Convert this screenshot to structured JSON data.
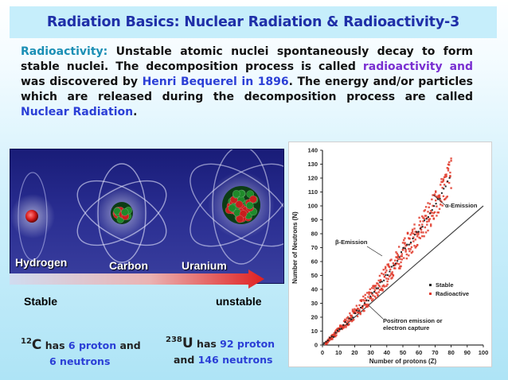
{
  "title": "Radiation Basics: Nuclear Radiation & Radioactivity-3",
  "paragraph": {
    "label": "Radioactivity:",
    "t1": " Unstable atomic nuclei spontaneously decay to form stable nuclei. The decomposition process is called ",
    "radioactivity": "radioactivity",
    "t2": " ",
    "and1": "and",
    "t3": " was discovered by ",
    "henri": "Henri Bequerel",
    "t4": " ",
    "in1896": "in 1896",
    "t5": ". The energy and/or particles which are released during the decomposition process are called ",
    "nuclear": "Nuclear Radiation",
    "t6": "."
  },
  "atoms": {
    "hydrogen": "Hydrogen",
    "carbon": "Carbon",
    "uranium": "Uranium",
    "stable": "Stable",
    "unstable": "unstable"
  },
  "isotopes": {
    "carbon": {
      "mass": "12",
      "symbol": "C",
      "has": " has ",
      "protons": "6 proton",
      "and": " and",
      "neutrons": "6 neutrons"
    },
    "uranium": {
      "mass": "238",
      "symbol": "U",
      "has": " has ",
      "protons": "92 proton",
      "and": "and ",
      "neutrons": "146 neutrons"
    }
  },
  "colors": {
    "title": "#1f2fa8",
    "highlight": "#2b3fd6",
    "teal": "#1b8fb5",
    "stable_marker": "#222222",
    "radioactive_marker": "#e03a2a"
  },
  "chart_data": {
    "type": "scatter",
    "xlabel": "Number of protons (Z)",
    "ylabel": "Number of Neutrons (N)",
    "xlim": [
      0,
      100
    ],
    "ylim": [
      0,
      140
    ],
    "x_ticks": [
      "0",
      "10",
      "20",
      "30",
      "40",
      "50",
      "60",
      "70",
      "80",
      "90",
      "100"
    ],
    "y_ticks": [
      "0",
      "10",
      "20",
      "30",
      "40",
      "50",
      "60",
      "70",
      "80",
      "90",
      "100",
      "110",
      "120",
      "130",
      "140"
    ],
    "legend": {
      "position": "right",
      "items": [
        {
          "label": "Stable",
          "color": "#222222"
        },
        {
          "label": "Radioactive",
          "color": "#e03a2a"
        }
      ]
    },
    "annotations": [
      "α-Emission",
      "β-Emission",
      "Positron emission or",
      "electron capture"
    ],
    "series": [
      {
        "name": "Stable",
        "band": [
          [
            1,
            0
          ],
          [
            5,
            5
          ],
          [
            10,
            10
          ],
          [
            20,
            22
          ],
          [
            30,
            35
          ],
          [
            40,
            50
          ],
          [
            50,
            68
          ],
          [
            60,
            82
          ],
          [
            70,
            100
          ],
          [
            80,
            122
          ]
        ]
      },
      {
        "name": "Radioactive",
        "band": [
          [
            2,
            1
          ],
          [
            6,
            6
          ],
          [
            12,
            13
          ],
          [
            22,
            25
          ],
          [
            32,
            38
          ],
          [
            42,
            53
          ],
          [
            52,
            70
          ],
          [
            62,
            86
          ],
          [
            72,
            104
          ],
          [
            80,
            124
          ]
        ],
        "spread": [
          1,
          2,
          3,
          5,
          7,
          8,
          9,
          10,
          11,
          12
        ]
      },
      {
        "name": "N=Z",
        "line": [
          [
            0,
            0
          ],
          [
            100,
            100
          ]
        ]
      }
    ]
  }
}
